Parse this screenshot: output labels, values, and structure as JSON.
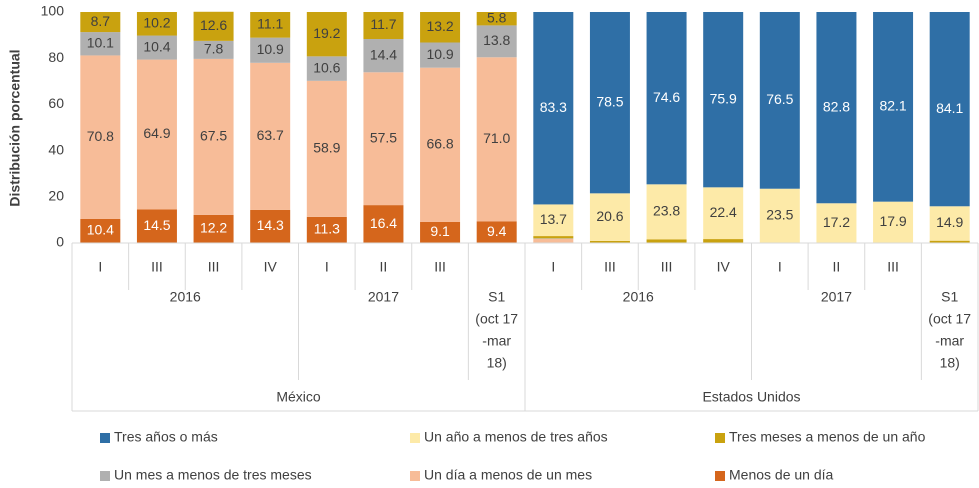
{
  "chart_data": {
    "type": "bar",
    "stacked": true,
    "y_label": "Distribución porcentual",
    "ylim": [
      0,
      100
    ],
    "yticks": [
      0,
      20,
      40,
      60,
      80,
      100
    ],
    "groups": [
      {
        "name": "México",
        "subgroups": [
          {
            "name": [
              "2016"
            ],
            "categories": [
              "I",
              "III",
              "III",
              "IV"
            ]
          },
          {
            "name": [
              "2017"
            ],
            "categories": [
              "I",
              "II",
              "III"
            ]
          },
          {
            "name": [
              "S1",
              "(oct 17",
              "-mar",
              "18)"
            ],
            "categories": [
              null
            ]
          }
        ]
      },
      {
        "name": "Estados Unidos",
        "subgroups": [
          {
            "name": [
              "2016"
            ],
            "categories": [
              "I",
              "III",
              "III",
              "IV"
            ]
          },
          {
            "name": [
              "2017"
            ],
            "categories": [
              "I",
              "II",
              "III"
            ]
          },
          {
            "name": [
              "S1",
              "(oct 17",
              "-mar",
              "18)"
            ],
            "categories": [
              null
            ]
          }
        ]
      }
    ],
    "series": [
      {
        "name": "Menos de un día",
        "color": "#d5661c",
        "label_color": "#ffffff",
        "values": [
          10.4,
          14.5,
          12.2,
          14.3,
          11.3,
          16.4,
          9.1,
          9.4,
          0.3,
          0,
          0,
          0,
          0,
          0,
          0,
          0
        ],
        "value_labels": [
          "10.4",
          "14.5",
          "12.2",
          "14.3",
          "11.3",
          "16.4",
          "9.1",
          "9.4",
          null,
          null,
          null,
          null,
          null,
          null,
          null,
          null
        ]
      },
      {
        "name": "Un día a menos de un mes",
        "color": "#f7bc98",
        "label_color": "#404040",
        "values": [
          70.8,
          64.9,
          67.5,
          63.7,
          58.9,
          57.5,
          66.8,
          71.0,
          1.5,
          0,
          0,
          0,
          0,
          0,
          0,
          0
        ],
        "value_labels": [
          "70.8",
          "64.9",
          "67.5",
          "63.7",
          "58.9",
          "57.5",
          "66.8",
          "71.0",
          null,
          null,
          null,
          null,
          null,
          null,
          null,
          null
        ]
      },
      {
        "name": "Un mes a menos de tres meses",
        "color": "#b0b0b0",
        "label_color": "#404040",
        "values": [
          10.1,
          10.4,
          7.8,
          10.9,
          10.6,
          14.4,
          10.9,
          13.8,
          0.2,
          0,
          0,
          0,
          0,
          0,
          0,
          0
        ],
        "value_labels": [
          "10.1",
          "10.4",
          "7.8",
          "10.9",
          "10.6",
          "14.4",
          "10.9",
          "13.8",
          null,
          null,
          null,
          null,
          null,
          null,
          null,
          null
        ]
      },
      {
        "name": "Tres meses a menos de un año",
        "color": "#c9a20f",
        "label_color": "#404040",
        "values": [
          8.7,
          10.2,
          12.6,
          11.1,
          19.2,
          11.7,
          13.2,
          5.8,
          1.0,
          0.9,
          1.6,
          1.7,
          0,
          0,
          0,
          1.0
        ],
        "value_labels": [
          "8.7",
          "10.2",
          "12.6",
          "11.1",
          "19.2",
          "11.7",
          "13.2",
          "5.8",
          null,
          null,
          null,
          null,
          null,
          null,
          null,
          null
        ]
      },
      {
        "name": "Un año a menos de tres años",
        "color": "#fdeaa8",
        "label_color": "#404040",
        "values": [
          0,
          0,
          0,
          0,
          0,
          0,
          0,
          0,
          13.7,
          20.6,
          23.8,
          22.4,
          23.5,
          17.2,
          17.9,
          14.9
        ],
        "value_labels": [
          null,
          null,
          null,
          null,
          null,
          null,
          null,
          null,
          "13.7",
          "20.6",
          "23.8",
          "22.4",
          "23.5",
          "17.2",
          "17.9",
          "14.9"
        ]
      },
      {
        "name": "Tres años o más",
        "color": "#2f6fa6",
        "label_color": "#ffffff",
        "values": [
          0,
          0,
          0,
          0,
          0,
          0,
          0,
          0,
          83.3,
          78.5,
          74.6,
          75.9,
          76.5,
          82.8,
          82.1,
          84.1
        ],
        "value_labels": [
          null,
          null,
          null,
          null,
          null,
          null,
          null,
          null,
          "83.3",
          "78.5",
          "74.6",
          "75.9",
          "76.5",
          "82.8",
          "82.1",
          "84.1"
        ]
      }
    ]
  }
}
